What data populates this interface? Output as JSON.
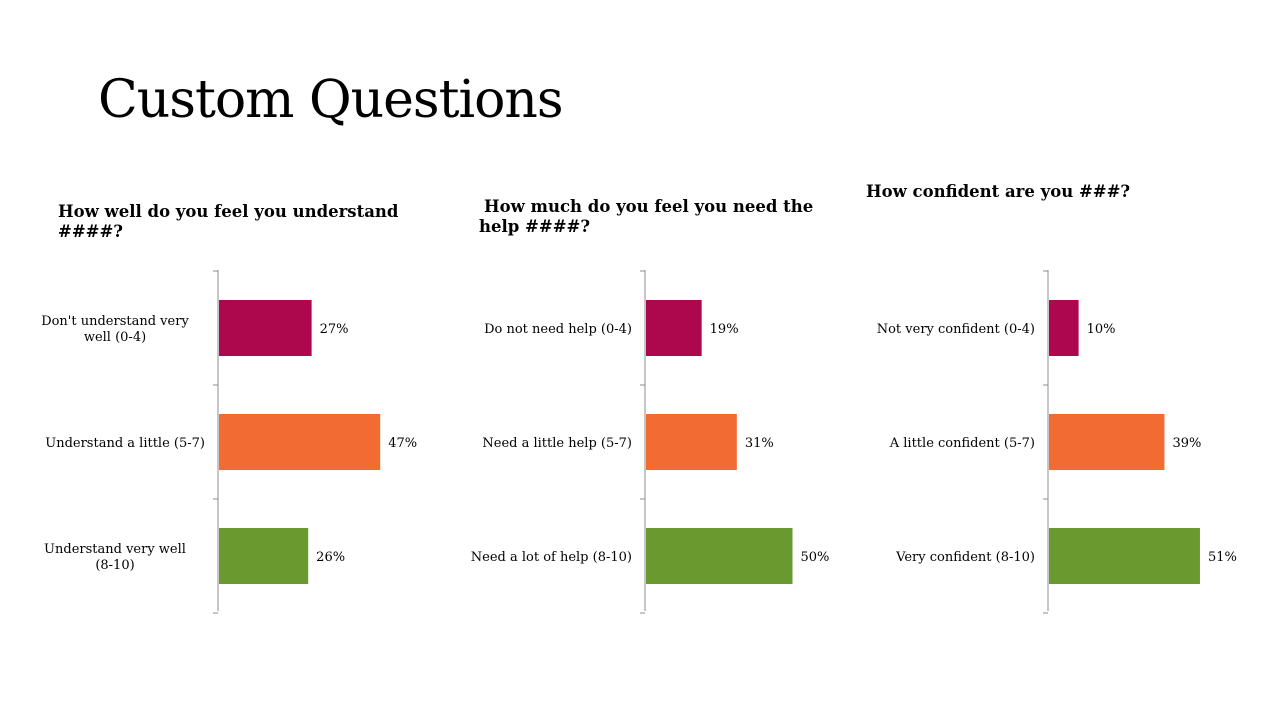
{
  "slide": {
    "title": "Custom Questions"
  },
  "colors": {
    "low": "#ad084e",
    "mid": "#f26b33",
    "high": "#6a9a2f",
    "axis": "#8c8c8c"
  },
  "chart_data": [
    {
      "type": "bar",
      "orientation": "horizontal",
      "title": "How well do you feel you understand ####?",
      "categories": [
        "Don't understand very well (0-4)",
        "Understand a little (5-7)",
        "Understand very well (8-10)"
      ],
      "values": [
        27,
        47,
        26
      ],
      "data_labels": [
        "27%",
        "47%",
        "26%"
      ],
      "unit": "%"
    },
    {
      "type": "bar",
      "orientation": "horizontal",
      "title": "How much do you feel you need the help ####?",
      "categories": [
        "Do not need help (0-4)",
        "Need a little help (5-7)",
        "Need a lot of help (8-10)"
      ],
      "values": [
        19,
        31,
        50
      ],
      "data_labels": [
        "19%",
        "31%",
        "50%"
      ],
      "unit": "%"
    },
    {
      "type": "bar",
      "orientation": "horizontal",
      "title": "How confident are you ###?",
      "categories": [
        "Not very confident (0-4)",
        "A little confident (5-7)",
        "Very confident (8-10)"
      ],
      "values": [
        10,
        39,
        51
      ],
      "data_labels": [
        "10%",
        "39%",
        "51%"
      ],
      "unit": "%"
    }
  ]
}
